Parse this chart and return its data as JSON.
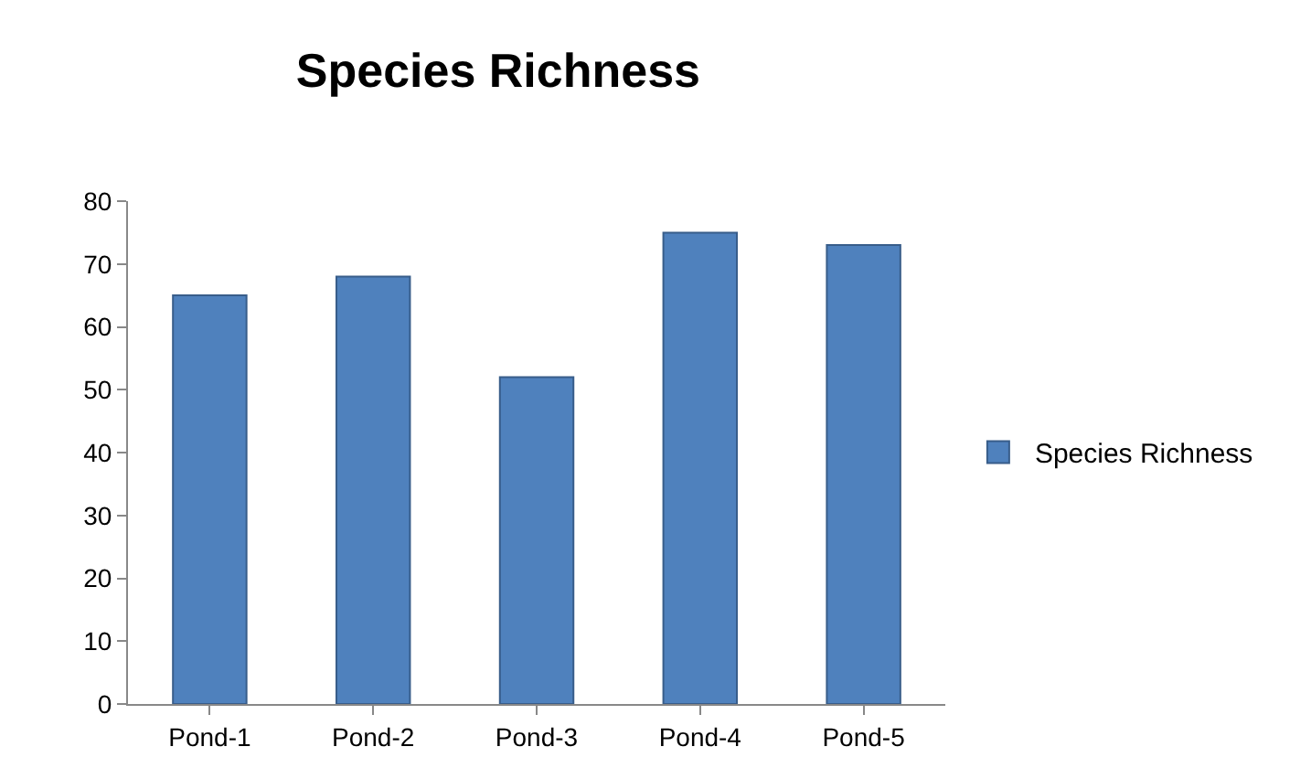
{
  "chart_data": {
    "type": "bar",
    "title": "Species Richness",
    "categories": [
      "Pond-1",
      "Pond-2",
      "Pond-3",
      "Pond-4",
      "Pond-5"
    ],
    "series": [
      {
        "name": "Species Richness",
        "color": "#4f81bd",
        "values": [
          65,
          68,
          52,
          75,
          73
        ]
      }
    ],
    "ylim": [
      0,
      80
    ],
    "yticks": [
      0,
      10,
      20,
      30,
      40,
      50,
      60,
      70,
      80
    ],
    "grid": false,
    "legend": "right"
  }
}
